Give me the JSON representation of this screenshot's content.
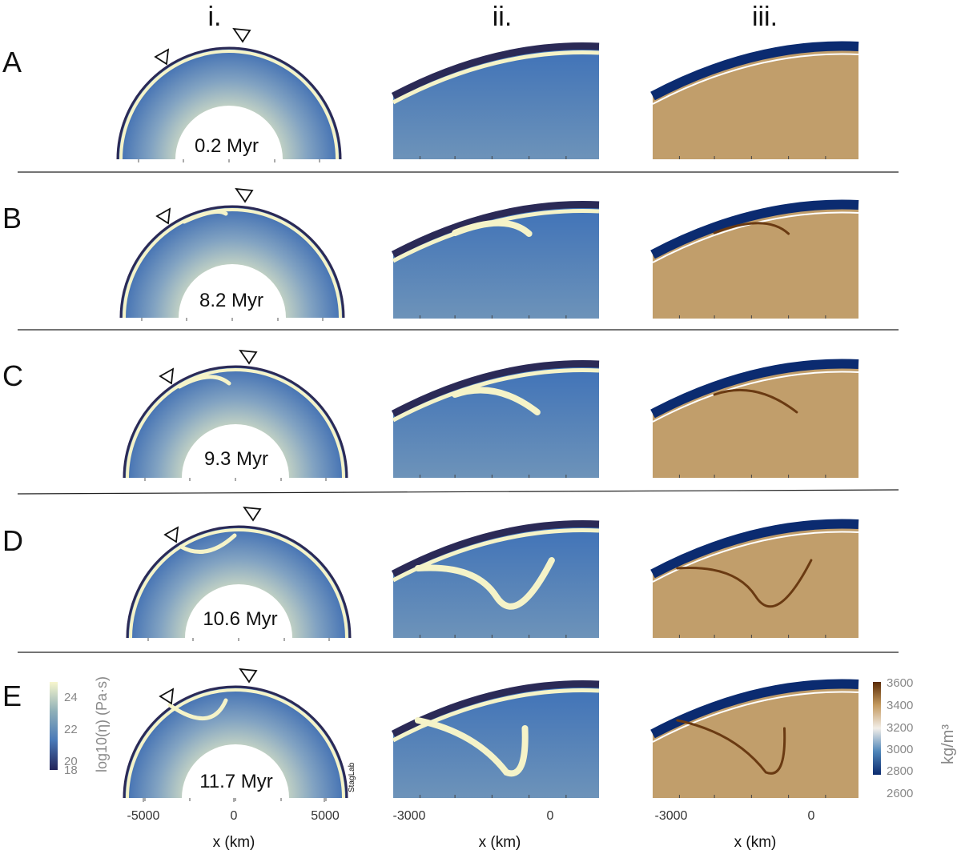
{
  "figure": {
    "column_labels": [
      "i.",
      "ii.",
      "iii."
    ],
    "rows": [
      {
        "label": "A",
        "time": "0.2 Myr"
      },
      {
        "label": "B",
        "time": "8.2 Myr"
      },
      {
        "label": "C",
        "time": "9.3 Myr"
      },
      {
        "label": "D",
        "time": "10.6 Myr"
      },
      {
        "label": "E",
        "time": "11.7 Myr"
      }
    ],
    "stamp": "StagLab",
    "viscosity_colorbar": {
      "label": "log10(η) (Pa·s)",
      "ticks": [
        "24",
        "22",
        "20",
        "18"
      ],
      "colors": [
        "#f7f6cd",
        "#8fb0b8",
        "#4a7ab8",
        "#23245a"
      ]
    },
    "density_colorbar": {
      "label": "kg/m³",
      "ticks": [
        "3600",
        "3400",
        "3200",
        "3000",
        "2800",
        "2600"
      ],
      "colors": [
        "#5a2a05",
        "#c49a5f",
        "#f2eee8",
        "#4f86b9",
        "#0a2a6e"
      ]
    },
    "axes": {
      "col_i": {
        "xlabel": "x (km)",
        "ticks": [
          "-5000",
          "0",
          "5000"
        ]
      },
      "col_ii": {
        "xlabel": "x (km)",
        "ticks": [
          "-3000",
          "0"
        ]
      },
      "col_iii": {
        "xlabel": "x (km)",
        "ticks": [
          "-3000",
          "0"
        ]
      }
    },
    "colors": {
      "mantle_blue": "#4a7ab8",
      "lithosphere_cream": "#f5f3c8",
      "air_dark": "#2b2a56",
      "density_tan": "#c19e6b",
      "crust_navy": "#0b2b70",
      "slab_brown": "#6a3a12"
    }
  }
}
